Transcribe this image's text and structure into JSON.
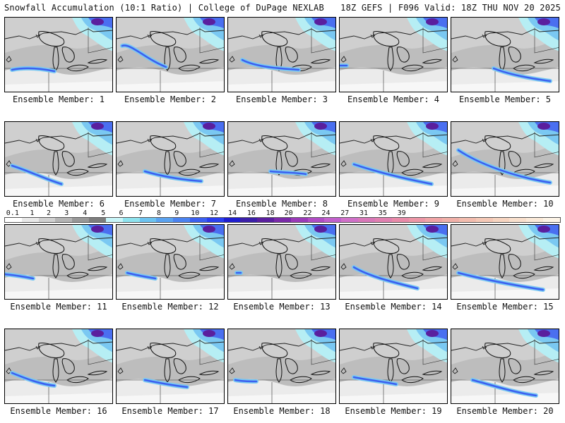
{
  "header": {
    "left": "Snowfall Accumulation (10:1 Ratio) | College of DuPage NEXLAB",
    "right": "18Z GEFS | F096 Valid: 18Z THU NOV 20 2025"
  },
  "panels": [
    {
      "label": "Ensemble Member: 1"
    },
    {
      "label": "Ensemble Member: 2"
    },
    {
      "label": "Ensemble Member: 3"
    },
    {
      "label": "Ensemble Member: 4"
    },
    {
      "label": "Ensemble Member: 5"
    },
    {
      "label": "Ensemble Member: 6"
    },
    {
      "label": "Ensemble Member: 7"
    },
    {
      "label": "Ensemble Member: 8"
    },
    {
      "label": "Ensemble Member: 9"
    },
    {
      "label": "Ensemble Member: 10"
    },
    {
      "label": "Ensemble Member: 11"
    },
    {
      "label": "Ensemble Member: 12"
    },
    {
      "label": "Ensemble Member: 13"
    },
    {
      "label": "Ensemble Member: 14"
    },
    {
      "label": "Ensemble Member: 15"
    },
    {
      "label": "Ensemble Member: 16"
    },
    {
      "label": "Ensemble Member: 17"
    },
    {
      "label": "Ensemble Member: 18"
    },
    {
      "label": "Ensemble Member: 19"
    },
    {
      "label": "Ensemble Member: 20"
    }
  ],
  "colorbar": {
    "ticks": [
      "0.1",
      "1",
      "2",
      "3",
      "4",
      "5",
      "6",
      "7",
      "8",
      "9",
      "10",
      "12",
      "14",
      "16",
      "18",
      "20",
      "22",
      "24",
      "27",
      "31",
      "35",
      "39"
    ],
    "colors": [
      "#ffffff",
      "#e8e8e8",
      "#d0d0d0",
      "#b4b4b4",
      "#989898",
      "#7d7d7d",
      "#c8f5f8",
      "#8ee3ee",
      "#6cc3f0",
      "#5aa2f0",
      "#4a82f0",
      "#3b5ff0",
      "#2a3ef0",
      "#1f1ecf",
      "#3b1fa8",
      "#5a1f9e",
      "#7a2aa8",
      "#9a3ab8",
      "#b04cc4",
      "#c260cc",
      "#d070c8",
      "#d878b8",
      "#e080b0",
      "#e88aa8",
      "#ec96a6",
      "#f0a4a6",
      "#f0b0a8",
      "#f2bcae",
      "#f4c8b6",
      "#f6d4c0",
      "#f8dfcc",
      "#fae9d8",
      "#fcf3e6"
    ]
  }
}
